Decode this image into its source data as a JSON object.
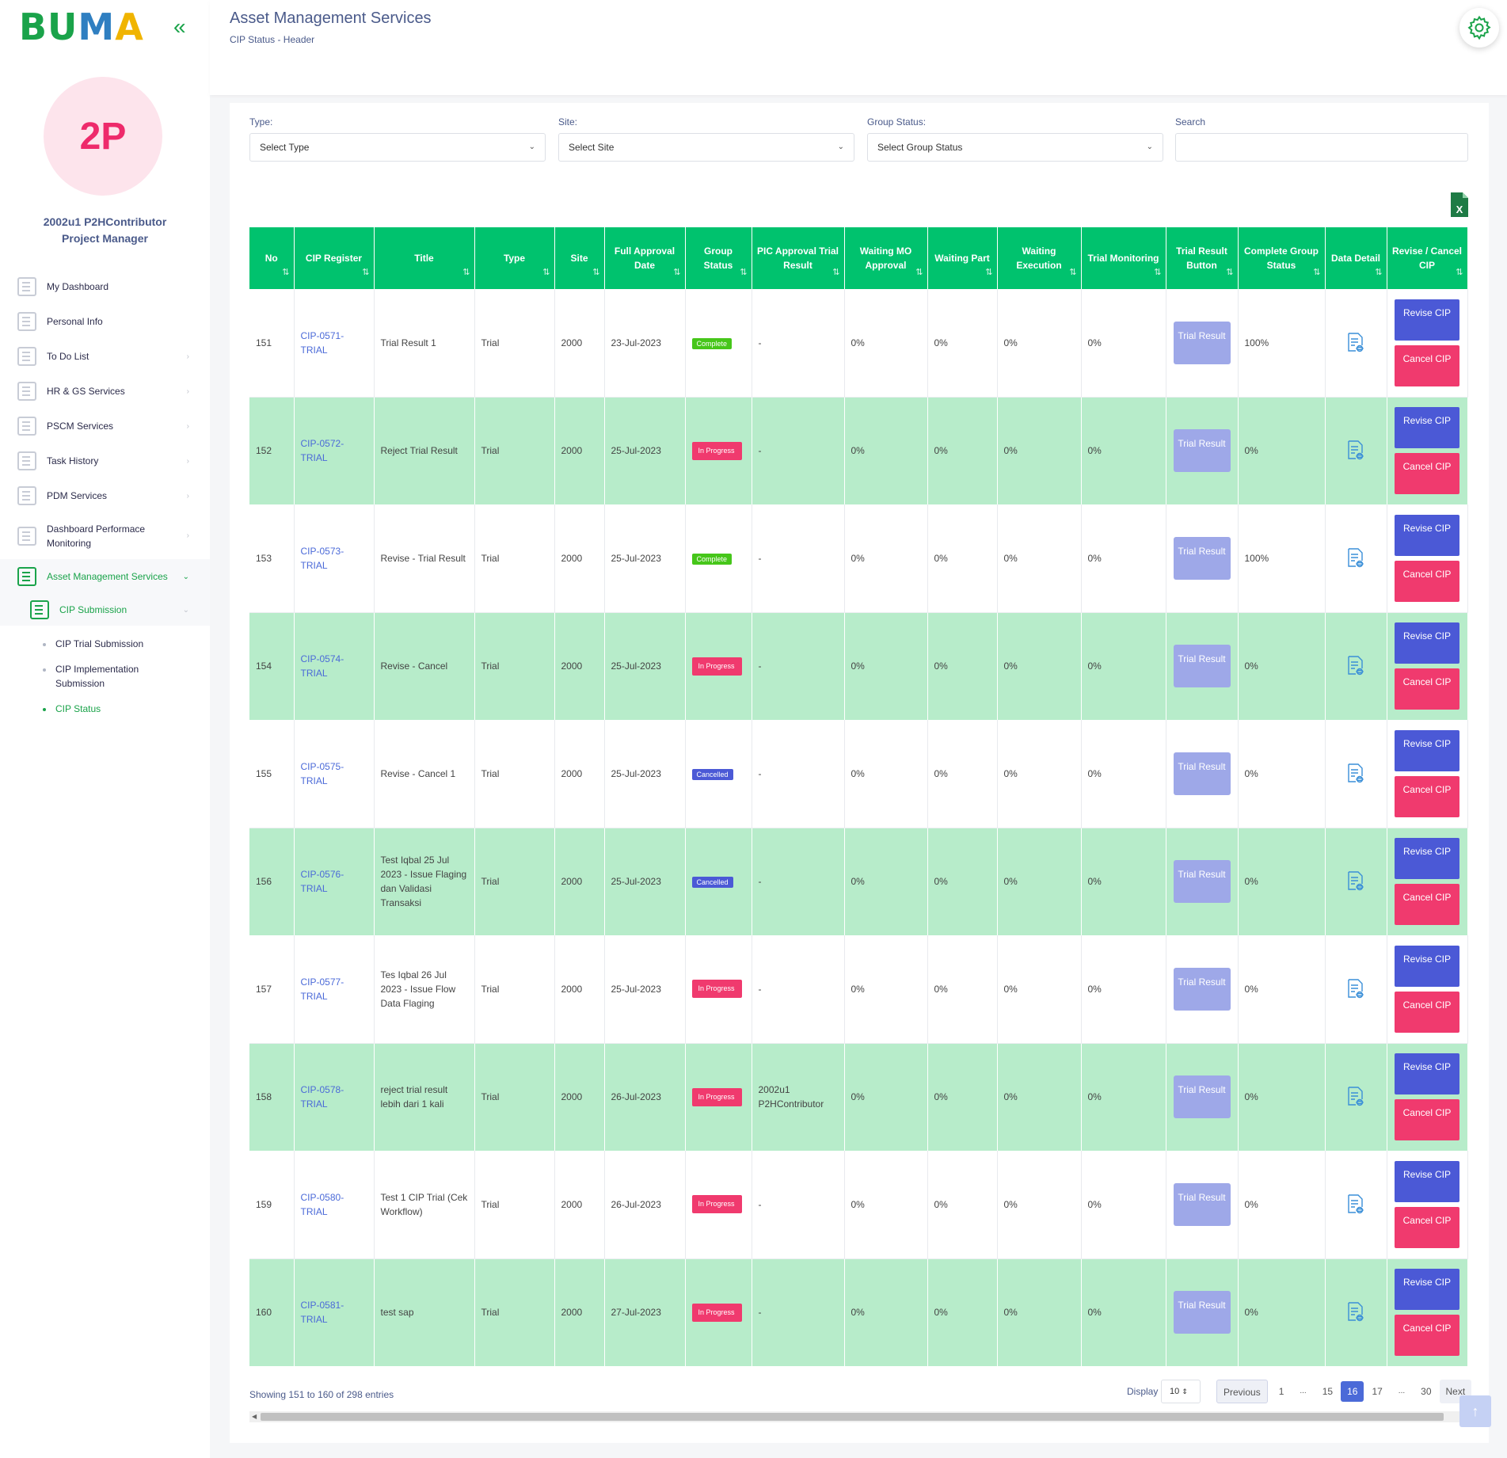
{
  "app": {
    "logo_text": "BUMA",
    "collapse_icon": "double-chevron-left-icon"
  },
  "user": {
    "initials": "2P",
    "name": "2002u1 P2HContributor",
    "role": "Project Manager"
  },
  "sidebar": {
    "items": [
      {
        "label": "My Dashboard",
        "icon": "dashboard-icon"
      },
      {
        "label": "Personal Info",
        "icon": "person-icon"
      },
      {
        "label": "To Do List",
        "icon": "todo-icon"
      },
      {
        "label": "HR & GS Services",
        "icon": "building-icon"
      },
      {
        "label": "PSCM Services",
        "icon": "pscm-icon"
      },
      {
        "label": "Task History",
        "icon": "history-icon"
      },
      {
        "label": "PDM Services",
        "icon": "grid-icon"
      },
      {
        "label": "Dashboard Performace Monitoring",
        "icon": "monitor-icon"
      },
      {
        "label": "Asset Management Services",
        "icon": "asset-icon"
      }
    ],
    "submenu": {
      "label": "CIP Submission"
    },
    "submenu_items": [
      "CIP Trial Submission",
      "CIP Implementation Submission",
      "CIP Status"
    ]
  },
  "header": {
    "title": "Asset Management Services",
    "breadcrumb": "CIP Status - Header",
    "settings_icon": "gear-icon"
  },
  "filters": {
    "type_label": "Type:",
    "type_value": "Select Type",
    "site_label": "Site:",
    "site_value": "Select Site",
    "group_label": "Group Status:",
    "group_value": "Select Group Status",
    "search_label": "Search",
    "search_value": ""
  },
  "table": {
    "headers": [
      "No",
      "CIP Register",
      "Title",
      "Type",
      "Site",
      "Full Approval Date",
      "Group Status",
      "PIC Approval Trial Result",
      "Waiting MO Approval",
      "Waiting Part",
      "Waiting Execution",
      "Trial Monitoring",
      "Trial Result Button",
      "Complete Group Status",
      "Data Detail",
      "Revise / Cancel CIP"
    ],
    "trial_button": "Trial Result",
    "revise_button": "Revise CIP",
    "cancel_button": "Cancel CIP",
    "rows": [
      {
        "no": "151",
        "reg": "CIP-0571-TRIAL",
        "title": "Trial Result 1",
        "type": "Trial",
        "site": "2000",
        "date": "23-Jul-2023",
        "status": "Complete",
        "status_kind": "complete",
        "pic": "-",
        "mo": "0%",
        "part": "0%",
        "exec": "0%",
        "mon": "0%",
        "complete": "100%"
      },
      {
        "no": "152",
        "reg": "CIP-0572-TRIAL",
        "title": "Reject Trial Result",
        "type": "Trial",
        "site": "2000",
        "date": "25-Jul-2023",
        "status": "In Progress",
        "status_kind": "progress",
        "pic": "-",
        "mo": "0%",
        "part": "0%",
        "exec": "0%",
        "mon": "0%",
        "complete": "0%"
      },
      {
        "no": "153",
        "reg": "CIP-0573-TRIAL",
        "title": "Revise - Trial Result",
        "type": "Trial",
        "site": "2000",
        "date": "25-Jul-2023",
        "status": "Complete",
        "status_kind": "complete",
        "pic": "-",
        "mo": "0%",
        "part": "0%",
        "exec": "0%",
        "mon": "0%",
        "complete": "100%"
      },
      {
        "no": "154",
        "reg": "CIP-0574-TRIAL",
        "title": "Revise - Cancel",
        "type": "Trial",
        "site": "2000",
        "date": "25-Jul-2023",
        "status": "In Progress",
        "status_kind": "progress",
        "pic": "-",
        "mo": "0%",
        "part": "0%",
        "exec": "0%",
        "mon": "0%",
        "complete": "0%"
      },
      {
        "no": "155",
        "reg": "CIP-0575-TRIAL",
        "title": "Revise - Cancel 1",
        "type": "Trial",
        "site": "2000",
        "date": "25-Jul-2023",
        "status": "Cancelled",
        "status_kind": "cancelled",
        "pic": "-",
        "mo": "0%",
        "part": "0%",
        "exec": "0%",
        "mon": "0%",
        "complete": "0%"
      },
      {
        "no": "156",
        "reg": "CIP-0576-TRIAL",
        "title": "Test Iqbal 25 Jul 2023 - Issue Flaging dan Validasi Transaksi",
        "type": "Trial",
        "site": "2000",
        "date": "25-Jul-2023",
        "status": "Cancelled",
        "status_kind": "cancelled",
        "pic": "-",
        "mo": "0%",
        "part": "0%",
        "exec": "0%",
        "mon": "0%",
        "complete": "0%"
      },
      {
        "no": "157",
        "reg": "CIP-0577-TRIAL",
        "title": "Tes Iqbal 26 Jul 2023 - Issue Flow Data Flaging",
        "type": "Trial",
        "site": "2000",
        "date": "25-Jul-2023",
        "status": "In Progress",
        "status_kind": "progress",
        "pic": "-",
        "mo": "0%",
        "part": "0%",
        "exec": "0%",
        "mon": "0%",
        "complete": "0%"
      },
      {
        "no": "158",
        "reg": "CIP-0578-TRIAL",
        "title": "reject trial result lebih dari 1 kali",
        "type": "Trial",
        "site": "2000",
        "date": "26-Jul-2023",
        "status": "In Progress",
        "status_kind": "progress",
        "pic": "2002u1 P2HContributor",
        "mo": "0%",
        "part": "0%",
        "exec": "0%",
        "mon": "0%",
        "complete": "0%"
      },
      {
        "no": "159",
        "reg": "CIP-0580-TRIAL",
        "title": "Test 1 CIP Trial (Cek Workflow)",
        "type": "Trial",
        "site": "2000",
        "date": "26-Jul-2023",
        "status": "In Progress",
        "status_kind": "progress",
        "pic": "-",
        "mo": "0%",
        "part": "0%",
        "exec": "0%",
        "mon": "0%",
        "complete": "0%"
      },
      {
        "no": "160",
        "reg": "CIP-0581-TRIAL",
        "title": "test sap",
        "type": "Trial",
        "site": "2000",
        "date": "27-Jul-2023",
        "status": "In Progress",
        "status_kind": "progress",
        "pic": "-",
        "mo": "0%",
        "part": "0%",
        "exec": "0%",
        "mon": "0%",
        "complete": "0%"
      }
    ]
  },
  "footer": {
    "showing": "Showing 151 to 160 of 298 entries",
    "display_label": "Display",
    "display_value": "10",
    "pages": [
      "Previous",
      "1",
      "...",
      "15",
      "16",
      "17",
      "...",
      "30",
      "Next"
    ],
    "current_page": "16"
  },
  "colors": {
    "header_green": "#00c26e",
    "row_green": "#b7ecca",
    "revise_blue": "#4b59d6",
    "cancel_pink": "#f03a6e",
    "complete_green": "#46c61a"
  }
}
